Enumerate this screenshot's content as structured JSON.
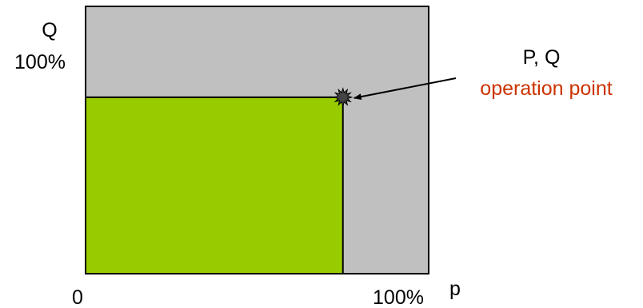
{
  "labels": {
    "q_axis": "Q",
    "q_max": "100%",
    "origin": "0",
    "p_max": "100%",
    "p_axis": "p",
    "point_label": "P, Q",
    "point_caption": "operation point"
  },
  "operating_point": {
    "p_percent": 75,
    "q_percent": 66
  },
  "colors": {
    "area_background": "#c0c0c0",
    "operating_region": "#99cc00",
    "caption_accent": "#cc3300",
    "point_marker": "#444444",
    "outline": "#000000"
  }
}
